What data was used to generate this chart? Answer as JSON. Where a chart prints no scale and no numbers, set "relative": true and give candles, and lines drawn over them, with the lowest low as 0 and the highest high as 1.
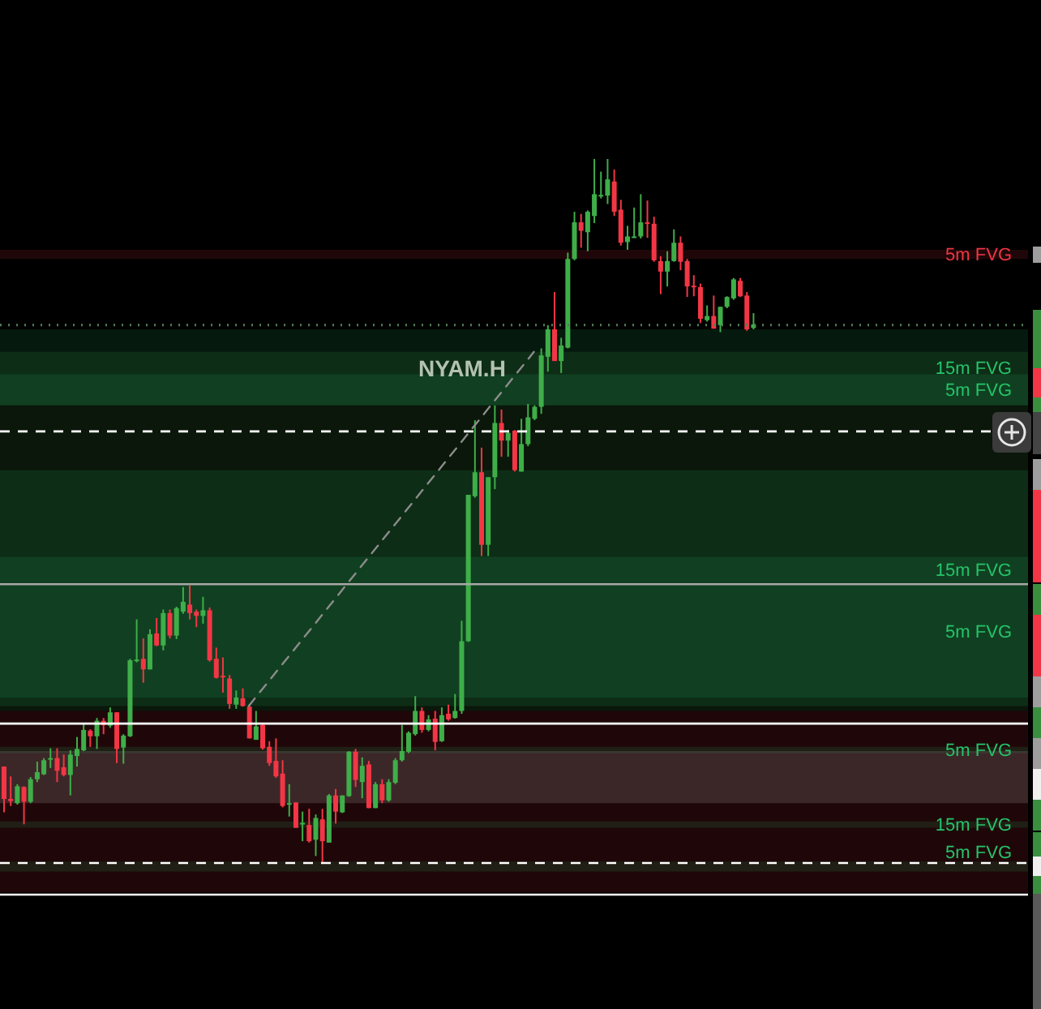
{
  "chart_data": {
    "type": "candlestick",
    "relative": true,
    "tick_labels": false,
    "categories": [
      null,
      null,
      null,
      null,
      null,
      null,
      null,
      null,
      null,
      null,
      null,
      null,
      null,
      null,
      null,
      null,
      null,
      null,
      null,
      null,
      null,
      null,
      null,
      null,
      null,
      null,
      null,
      null,
      null,
      null,
      null,
      null,
      null,
      null,
      null,
      null,
      null,
      null,
      null,
      null,
      null,
      null,
      null,
      null,
      null,
      null,
      null,
      null,
      null,
      null,
      null,
      null,
      null,
      null,
      null,
      null,
      null,
      null,
      null,
      null,
      null,
      null,
      null,
      null,
      null,
      null,
      null,
      null,
      null,
      null,
      null,
      null,
      null,
      null,
      null,
      null,
      null,
      null,
      null,
      null,
      null,
      null,
      null,
      null,
      null,
      null,
      null,
      null,
      null,
      null,
      null,
      null,
      null,
      null,
      null,
      null,
      null,
      null,
      null,
      null,
      null,
      null,
      null,
      null,
      null,
      null,
      null,
      null,
      null,
      null,
      null,
      null,
      null,
      null,
      null,
      null,
      null,
      null,
      null,
      null,
      null,
      null,
      null,
      null,
      null,
      null,
      null,
      null,
      null,
      null,
      null,
      null,
      null,
      null,
      null,
      null,
      null,
      null,
      null,
      null,
      null,
      null,
      null,
      null,
      null,
      null,
      null,
      null,
      null,
      null,
      null,
      null,
      null,
      null,
      null
    ],
    "ohlc": [
      [
        0.137,
        0.137,
        0.072,
        0.091
      ],
      [
        0.091,
        0.123,
        0.081,
        0.088
      ],
      [
        0.085,
        0.112,
        0.083,
        0.109
      ],
      [
        0.108,
        0.109,
        0.055,
        0.087
      ],
      [
        0.087,
        0.122,
        0.085,
        0.119
      ],
      [
        0.119,
        0.144,
        0.115,
        0.129
      ],
      [
        0.126,
        0.149,
        0.125,
        0.146
      ],
      [
        0.148,
        0.163,
        0.135,
        0.149
      ],
      [
        0.149,
        0.163,
        0.115,
        0.131
      ],
      [
        0.136,
        0.154,
        0.123,
        0.125
      ],
      [
        0.125,
        0.16,
        0.096,
        0.154
      ],
      [
        0.152,
        0.179,
        0.137,
        0.162
      ],
      [
        0.16,
        0.198,
        0.159,
        0.189
      ],
      [
        0.188,
        0.19,
        0.165,
        0.18
      ],
      [
        0.18,
        0.206,
        0.162,
        0.202
      ],
      [
        0.202,
        0.206,
        0.183,
        0.196
      ],
      [
        0.195,
        0.221,
        0.192,
        0.214
      ],
      [
        0.214,
        0.214,
        0.142,
        0.162
      ],
      [
        0.164,
        0.183,
        0.141,
        0.181
      ],
      [
        0.18,
        0.29,
        0.179,
        0.288
      ],
      [
        0.288,
        0.346,
        0.285,
        0.289
      ],
      [
        0.29,
        0.319,
        0.256,
        0.275
      ],
      [
        0.275,
        0.332,
        0.275,
        0.325
      ],
      [
        0.326,
        0.348,
        0.308,
        0.309
      ],
      [
        0.309,
        0.36,
        0.302,
        0.355
      ],
      [
        0.355,
        0.36,
        0.319,
        0.323
      ],
      [
        0.323,
        0.364,
        0.318,
        0.362
      ],
      [
        0.357,
        0.392,
        0.354,
        0.371
      ],
      [
        0.367,
        0.394,
        0.346,
        0.355
      ],
      [
        0.357,
        0.36,
        0.335,
        0.351
      ],
      [
        0.351,
        0.378,
        0.34,
        0.359
      ],
      [
        0.359,
        0.363,
        0.286,
        0.288
      ],
      [
        0.29,
        0.306,
        0.262,
        0.263
      ],
      [
        0.266,
        0.292,
        0.242,
        0.265
      ],
      [
        0.262,
        0.267,
        0.219,
        0.226
      ],
      [
        0.225,
        0.245,
        0.219,
        0.235
      ],
      [
        0.234,
        0.248,
        0.222,
        0.223
      ],
      [
        0.222,
        0.225,
        0.177,
        0.177
      ],
      [
        0.175,
        0.216,
        0.175,
        0.194
      ],
      [
        0.196,
        0.198,
        0.161,
        0.163
      ],
      [
        0.165,
        0.173,
        0.138,
        0.142
      ],
      [
        0.145,
        0.177,
        0.121,
        0.123
      ],
      [
        0.127,
        0.146,
        0.079,
        0.081
      ],
      [
        0.084,
        0.112,
        0.066,
        0.085
      ],
      [
        0.086,
        0.086,
        0.05,
        0.05
      ],
      [
        0.055,
        0.073,
        0.031,
        0.057
      ],
      [
        0.054,
        0.077,
        0.029,
        0.031
      ],
      [
        0.033,
        0.069,
        0.01,
        0.064
      ],
      [
        0.062,
        0.077,
        0,
        0.031
      ],
      [
        0.029,
        0.098,
        0.029,
        0.096
      ],
      [
        0.096,
        0.105,
        0.056,
        0.073
      ],
      [
        0.072,
        0.096,
        0.071,
        0.096
      ],
      [
        0.095,
        0.159,
        0.094,
        0.158
      ],
      [
        0.158,
        0.162,
        0.108,
        0.118
      ],
      [
        0.115,
        0.15,
        0.092,
        0.138
      ],
      [
        0.14,
        0.145,
        0.078,
        0.078
      ],
      [
        0.078,
        0.115,
        0.078,
        0.112
      ],
      [
        0.112,
        0.119,
        0.085,
        0.089
      ],
      [
        0.089,
        0.119,
        0.087,
        0.115
      ],
      [
        0.114,
        0.149,
        0.112,
        0.146
      ],
      [
        0.146,
        0.196,
        0.144,
        0.159
      ],
      [
        0.158,
        0.187,
        0.156,
        0.185
      ],
      [
        0.183,
        0.237,
        0.181,
        0.216
      ],
      [
        0.216,
        0.221,
        0.185,
        0.189
      ],
      [
        0.189,
        0.21,
        0.187,
        0.204
      ],
      [
        0.205,
        0.216,
        0.16,
        0.172
      ],
      [
        0.173,
        0.221,
        0.172,
        0.21
      ],
      [
        0.212,
        0.225,
        0.202,
        0.204
      ],
      [
        0.206,
        0.24,
        0.205,
        0.216
      ],
      [
        0.216,
        0.344,
        0.212,
        0.315
      ],
      [
        0.315,
        0.523,
        0.314,
        0.523
      ],
      [
        0.521,
        0.629,
        0.519,
        0.555
      ],
      [
        0.555,
        0.59,
        0.436,
        0.452
      ],
      [
        0.452,
        0.548,
        0.436,
        0.548
      ],
      [
        0.548,
        0.65,
        0.531,
        0.625
      ],
      [
        0.625,
        0.644,
        0.577,
        0.6
      ],
      [
        0.6,
        0.615,
        0.577,
        0.611
      ],
      [
        0.614,
        0.615,
        0.556,
        0.558
      ],
      [
        0.556,
        0.631,
        0.556,
        0.595
      ],
      [
        0.595,
        0.652,
        0.592,
        0.633
      ],
      [
        0.631,
        0.65,
        0.629,
        0.648
      ],
      [
        0.648,
        0.731,
        0.638,
        0.721
      ],
      [
        0.719,
        0.764,
        0.698,
        0.758
      ],
      [
        0.758,
        0.811,
        0.713,
        0.713
      ],
      [
        0.713,
        0.746,
        0.696,
        0.735
      ],
      [
        0.732,
        0.867,
        0.731,
        0.858
      ],
      [
        0.858,
        0.925,
        0.856,
        0.91
      ],
      [
        0.91,
        0.922,
        0.874,
        0.898
      ],
      [
        0.896,
        0.927,
        0.869,
        0.925
      ],
      [
        0.919,
        1,
        0.909,
        0.95
      ],
      [
        0.947,
        0.982,
        0.944,
        0.949
      ],
      [
        0.948,
        1,
        0.936,
        0.971
      ],
      [
        0.968,
        0.985,
        0.919,
        0.925
      ],
      [
        0.928,
        0.942,
        0.877,
        0.881
      ],
      [
        0.882,
        0.905,
        0.871,
        0.89
      ],
      [
        0.889,
        0.931,
        0.888,
        0.89
      ],
      [
        0.89,
        0.95,
        0.887,
        0.91
      ],
      [
        0.91,
        0.941,
        0.888,
        0.909
      ],
      [
        0.908,
        0.918,
        0.854,
        0.856
      ],
      [
        0.855,
        0.862,
        0.808,
        0.84
      ],
      [
        0.84,
        0.869,
        0.819,
        0.855
      ],
      [
        0.855,
        0.9,
        0.854,
        0.881
      ],
      [
        0.881,
        0.89,
        0.842,
        0.854
      ],
      [
        0.855,
        0.858,
        0.804,
        0.819
      ],
      [
        0.82,
        0.835,
        0.805,
        0.818
      ],
      [
        0.818,
        0.823,
        0.767,
        0.773
      ],
      [
        0.771,
        0.792,
        0.769,
        0.777
      ],
      [
        0.777,
        0.806,
        0.759,
        0.759
      ],
      [
        0.764,
        0.79,
        0.754,
        0.79
      ],
      [
        0.79,
        0.805,
        0.788,
        0.804
      ],
      [
        0.802,
        0.831,
        0.8,
        0.829
      ],
      [
        0.827,
        0.831,
        0.804,
        0.805
      ],
      [
        0.806,
        0.811,
        0.756,
        0.758
      ],
      [
        0.76,
        0.781,
        0.758,
        0.765
      ],
      null,
      null,
      null,
      null,
      null,
      null,
      null,
      null,
      null,
      null,
      null,
      null,
      null,
      null,
      null,
      null,
      null,
      null,
      null,
      null,
      null,
      null,
      null,
      null,
      null,
      null,
      null,
      null,
      null,
      null,
      null,
      null,
      null,
      null,
      null,
      null,
      null,
      null,
      null,
      null,
      null
    ],
    "colors": [
      "#f23645",
      "#f23645",
      "#3fae49",
      "#f23645",
      "#3fae49",
      "#3fae49",
      "#3fae49",
      "#3fae49",
      "#f23645",
      "#f23645",
      "#3fae49",
      "#3fae49",
      "#3fae49",
      "#f23645",
      "#3fae49",
      "#f23645",
      "#3fae49",
      "#f23645",
      "#3fae49",
      "#3fae49",
      "#3fae49",
      "#f23645",
      "#3fae49",
      "#f23645",
      "#3fae49",
      "#f23645",
      "#3fae49",
      "#3fae49",
      "#f23645",
      "#f23645",
      "#3fae49",
      "#f23645",
      "#f23645",
      "#f23645",
      "#f23645",
      "#3fae49",
      "#f23645",
      "#f23645",
      "#3fae49",
      "#f23645",
      "#f23645",
      "#f23645",
      "#f23645",
      "#3fae49",
      "#f23645",
      "#3fae49",
      "#f23645",
      "#3fae49",
      "#f23645",
      "#3fae49",
      "#f23645",
      "#3fae49",
      "#3fae49",
      "#f23645",
      "#3fae49",
      "#f23645",
      "#3fae49",
      "#f23645",
      "#3fae49",
      "#3fae49",
      "#3fae49",
      "#3fae49",
      "#3fae49",
      "#f23645",
      "#3fae49",
      "#f23645",
      "#3fae49",
      "#f23645",
      "#3fae49",
      "#3fae49",
      "#3fae49",
      "#3fae49",
      "#f23645",
      "#3fae49",
      "#3fae49",
      "#f23645",
      "#3fae49",
      "#f23645",
      "#3fae49",
      "#3fae49",
      "#3fae49",
      "#3fae49",
      "#3fae49",
      "#f23645",
      "#3fae49",
      "#3fae49",
      "#3fae49",
      "#f23645",
      "#3fae49",
      "#3fae49",
      "#3fae49",
      "#3fae49",
      "#f23645",
      "#f23645",
      "#3fae49",
      "#3fae49",
      "#3fae49",
      "#f23645",
      "#f23645",
      "#f23645",
      "#3fae49",
      "#3fae49",
      "#f23645",
      "#f23645",
      "#f23645",
      "#f23645",
      "#3fae49",
      "#f23645",
      "#3fae49",
      "#3fae49",
      "#3fae49",
      "#f23645",
      "#f23645",
      "#3fae49",
      null,
      null,
      null,
      null,
      null,
      null,
      null,
      null,
      null,
      null,
      null,
      null,
      null,
      null,
      null,
      null,
      null,
      null,
      null,
      null,
      null,
      null,
      null,
      null,
      null,
      null,
      null,
      null,
      null,
      null,
      null,
      null,
      null,
      null,
      null,
      null,
      null,
      null,
      null,
      null,
      null
    ],
    "series": [
      {
        "type": "line",
        "color": "#8c8c8c",
        "line_style": "dashed",
        "values": [
          null,
          null,
          null,
          null,
          null,
          null,
          null,
          null,
          null,
          null,
          null,
          null,
          null,
          null,
          null,
          null,
          null,
          null,
          null,
          null,
          null,
          null,
          null,
          null,
          null,
          null,
          null,
          null,
          null,
          null,
          null,
          null,
          null,
          null,
          null,
          null,
          null,
          0.223,
          null,
          null,
          null,
          null,
          null,
          null,
          null,
          null,
          null,
          null,
          null,
          null,
          null,
          null,
          null,
          null,
          null,
          null,
          null,
          null,
          null,
          null,
          null,
          null,
          null,
          null,
          null,
          null,
          null,
          null,
          null,
          null,
          null,
          null,
          null,
          null,
          null,
          null,
          null,
          null,
          null,
          null,
          0.726,
          null,
          null,
          null,
          null,
          null,
          null,
          null,
          null,
          null,
          null,
          null,
          null,
          null,
          null,
          null,
          null,
          null,
          null,
          null,
          null,
          null,
          null,
          null,
          null,
          null,
          null,
          null,
          null,
          null,
          null,
          null,
          null,
          null,
          null,
          null,
          null,
          null,
          null,
          null,
          null,
          null,
          null,
          null,
          null,
          null,
          null,
          null,
          null,
          null,
          null,
          null,
          null,
          null,
          null,
          null,
          null,
          null,
          null,
          null,
          null,
          null,
          null,
          null,
          null,
          null,
          null,
          null,
          null,
          null,
          null,
          null,
          null,
          null,
          null
        ]
      }
    ],
    "bands": [
      {
        "axis": "y",
        "from": 0.216,
        "to": 0.726,
        "color": "#4caf50"
      },
      {
        "axis": "y",
        "from": -0.042,
        "to": 0.216,
        "color": "#f23645"
      },
      {
        "axis": "y",
        "from": 0.085,
        "to": 0.159,
        "color": "#ffffff"
      },
      {
        "axis": "y",
        "from": 0.858,
        "to": 0.871,
        "label": "5m FVG",
        "color": "#f23645"
      },
      {
        "axis": "y",
        "from": 0.65,
        "to": 0.758,
        "label": "15m FVG",
        "color": "#26c46a"
      },
      {
        "axis": "y",
        "from": 0.65,
        "to": 0.694,
        "label": "5m FVG",
        "color": "#26c46a"
      },
      {
        "axis": "y",
        "from": 0.235,
        "to": 0.558,
        "label": "15m FVG",
        "color": "#26c46a"
      },
      {
        "axis": "y",
        "from": 0.223,
        "to": 0.435,
        "label": "5m FVG",
        "color": "#26c46a"
      },
      {
        "axis": "y",
        "from": 0.156,
        "to": 0.165,
        "label": "5m FVG",
        "color": "#26c46a"
      },
      {
        "axis": "y",
        "from": 0.05,
        "to": 0.059,
        "label": "15m FVG",
        "color": "#26c46a"
      },
      {
        "axis": "y",
        "from": -0.012,
        "to": 0.002,
        "label": "5m FVG",
        "color": "#26c46a"
      }
    ],
    "ref_lines": [
      {
        "axis": "y",
        "value": 0.764,
        "color": "#4f7f57",
        "line_style": "dotted"
      },
      {
        "axis": "y",
        "value": 0.613,
        "color": "#ffffff",
        "line_style": "dashed"
      },
      {
        "axis": "y",
        "value": 0.396,
        "color": "#a8a8a8"
      },
      {
        "axis": "y",
        "value": 0.198,
        "color": "#ffffff"
      },
      {
        "axis": "y",
        "value": 0,
        "color": "#ffffff",
        "line_style": "dashed"
      },
      {
        "axis": "y",
        "value": -0.045,
        "color": "#ffffff"
      }
    ],
    "annotations": [
      {
        "text": "NYAM.H",
        "y": 0.703
      }
    ]
  }
}
